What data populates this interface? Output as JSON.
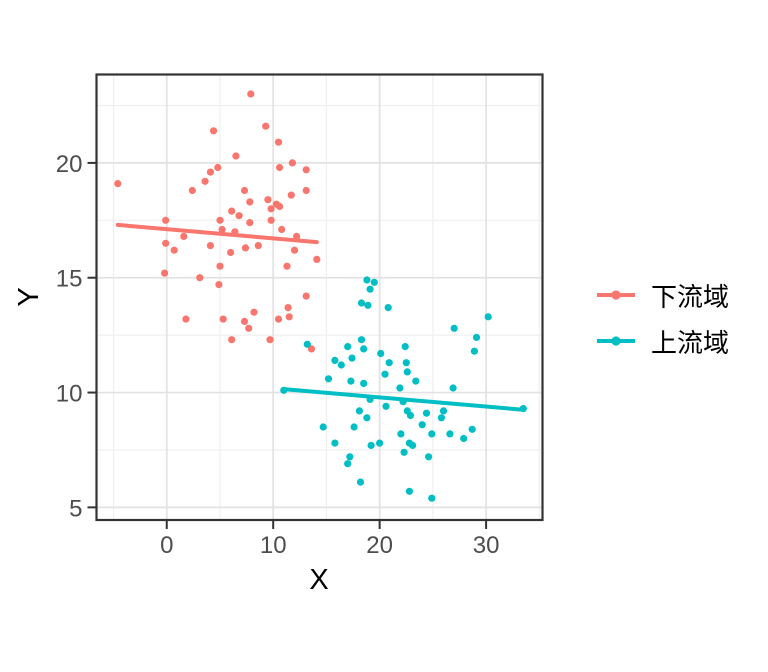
{
  "axes": {
    "x": {
      "label": "X",
      "ticks": [
        0,
        10,
        20,
        30
      ],
      "minor_ticks": [
        -5,
        5,
        15,
        25,
        35
      ],
      "range": [
        -6.6,
        35.3
      ]
    },
    "y": {
      "label": "Y",
      "ticks": [
        5,
        10,
        15,
        20
      ],
      "minor_ticks": [
        7.5,
        12.5,
        17.5,
        22.5
      ],
      "range": [
        4.45,
        23.85
      ]
    },
    "tick_label_color": "#4d4d4d",
    "title_color": "#000000"
  },
  "style": {
    "panel_background": "#ffffff",
    "panel_border_color": "#333333",
    "grid_major_color": "#e2e2e2",
    "grid_minor_color": "#efefef",
    "tick_mark_color": "#333333"
  },
  "legend": {
    "position": "right",
    "items": [
      {
        "label": "下流域",
        "color": "#F8766D"
      },
      {
        "label": "上流域",
        "color": "#00BFC4"
      }
    ]
  },
  "chart_data": {
    "type": "scatter",
    "title": "",
    "xlabel": "X",
    "ylabel": "Y",
    "xlim": [
      -6.6,
      35.3
    ],
    "ylim": [
      4.45,
      23.85
    ],
    "grid": true,
    "legend_position": "right",
    "series": [
      {
        "name": "下流域",
        "color": "#F8766D",
        "trend_line": {
          "x1": -4.6,
          "y1": 17.3,
          "x2": 14.1,
          "y2": 16.55
        },
        "points": [
          [
            -4.6,
            19.1
          ],
          [
            7.9,
            23.0
          ],
          [
            4.4,
            21.4
          ],
          [
            9.3,
            21.6
          ],
          [
            10.5,
            20.9
          ],
          [
            6.5,
            20.3
          ],
          [
            4.8,
            19.8
          ],
          [
            4.1,
            19.6
          ],
          [
            3.6,
            19.2
          ],
          [
            10.6,
            19.8
          ],
          [
            11.8,
            20.0
          ],
          [
            13.1,
            19.7
          ],
          [
            2.4,
            18.8
          ],
          [
            7.3,
            18.8
          ],
          [
            9.5,
            18.4
          ],
          [
            11.7,
            18.6
          ],
          [
            13.1,
            18.8
          ],
          [
            7.8,
            18.3
          ],
          [
            10.3,
            18.2
          ],
          [
            10.6,
            18.1
          ],
          [
            9.8,
            18.0
          ],
          [
            6.1,
            17.9
          ],
          [
            6.8,
            17.7
          ],
          [
            5.0,
            17.5
          ],
          [
            -0.1,
            17.5
          ],
          [
            7.8,
            17.4
          ],
          [
            9.8,
            17.5
          ],
          [
            10.8,
            17.1
          ],
          [
            5.2,
            17.1
          ],
          [
            6.4,
            17.0
          ],
          [
            12.2,
            16.8
          ],
          [
            1.6,
            16.8
          ],
          [
            -0.1,
            16.5
          ],
          [
            4.1,
            16.4
          ],
          [
            8.6,
            16.4
          ],
          [
            7.4,
            16.3
          ],
          [
            0.7,
            16.2
          ],
          [
            12.0,
            16.2
          ],
          [
            6.0,
            16.1
          ],
          [
            14.1,
            15.8
          ],
          [
            11.3,
            15.5
          ],
          [
            5.0,
            15.5
          ],
          [
            -0.2,
            15.2
          ],
          [
            3.1,
            15.0
          ],
          [
            4.9,
            14.7
          ],
          [
            13.1,
            14.2
          ],
          [
            11.4,
            13.7
          ],
          [
            8.2,
            13.5
          ],
          [
            11.5,
            13.3
          ],
          [
            10.5,
            13.2
          ],
          [
            1.8,
            13.2
          ],
          [
            5.3,
            13.2
          ],
          [
            7.3,
            13.1
          ],
          [
            7.7,
            12.8
          ],
          [
            9.7,
            12.3
          ],
          [
            6.1,
            12.3
          ],
          [
            13.6,
            11.9
          ]
        ]
      },
      {
        "name": "上流域",
        "color": "#00BFC4",
        "trend_line": {
          "x1": 11.0,
          "y1": 10.15,
          "x2": 33.5,
          "y2": 9.25
        },
        "points": [
          [
            18.8,
            14.9
          ],
          [
            19.5,
            14.8
          ],
          [
            19.1,
            14.5
          ],
          [
            18.3,
            13.9
          ],
          [
            18.9,
            13.8
          ],
          [
            20.8,
            13.7
          ],
          [
            30.2,
            13.3
          ],
          [
            27.0,
            12.8
          ],
          [
            29.1,
            12.4
          ],
          [
            13.2,
            12.1
          ],
          [
            18.3,
            12.3
          ],
          [
            17.0,
            12.0
          ],
          [
            22.4,
            12.0
          ],
          [
            18.5,
            11.9
          ],
          [
            28.9,
            11.8
          ],
          [
            20.1,
            11.7
          ],
          [
            17.4,
            11.5
          ],
          [
            15.8,
            11.4
          ],
          [
            20.9,
            11.3
          ],
          [
            22.5,
            11.3
          ],
          [
            16.4,
            11.2
          ],
          [
            22.6,
            10.9
          ],
          [
            20.5,
            10.8
          ],
          [
            17.3,
            10.5
          ],
          [
            23.4,
            10.5
          ],
          [
            18.5,
            10.4
          ],
          [
            26.9,
            10.2
          ],
          [
            21.9,
            10.2
          ],
          [
            11.0,
            10.1
          ],
          [
            15.2,
            10.6
          ],
          [
            19.1,
            9.7
          ],
          [
            22.2,
            9.6
          ],
          [
            26.0,
            9.2
          ],
          [
            20.6,
            9.4
          ],
          [
            18.1,
            9.2
          ],
          [
            22.6,
            9.2
          ],
          [
            24.4,
            9.1
          ],
          [
            22.9,
            9.0
          ],
          [
            18.8,
            8.9
          ],
          [
            25.8,
            8.9
          ],
          [
            24.0,
            8.6
          ],
          [
            17.6,
            8.5
          ],
          [
            14.7,
            8.5
          ],
          [
            28.7,
            8.4
          ],
          [
            26.6,
            8.2
          ],
          [
            22.0,
            8.2
          ],
          [
            24.9,
            8.2
          ],
          [
            27.9,
            8.0
          ],
          [
            15.8,
            7.8
          ],
          [
            22.8,
            7.8
          ],
          [
            23.1,
            7.7
          ],
          [
            19.2,
            7.7
          ],
          [
            20.0,
            7.8
          ],
          [
            22.3,
            7.4
          ],
          [
            17.2,
            7.2
          ],
          [
            24.6,
            7.2
          ],
          [
            17.0,
            6.9
          ],
          [
            18.2,
            6.1
          ],
          [
            22.8,
            5.7
          ],
          [
            24.9,
            5.4
          ],
          [
            33.5,
            9.3
          ]
        ]
      }
    ]
  }
}
